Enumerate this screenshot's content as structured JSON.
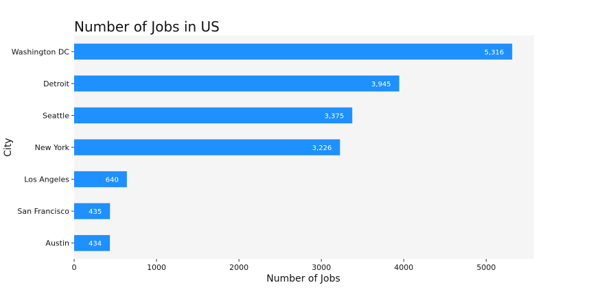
{
  "chart_data": {
    "type": "bar",
    "orientation": "horizontal",
    "title": "Number of Jobs in US",
    "xlabel": "Number of Jobs",
    "ylabel": "City",
    "categories": [
      "Washington DC",
      "Detroit",
      "Seattle",
      "New York",
      "Los Angeles",
      "San Francisco",
      "Austin"
    ],
    "values": [
      5316,
      3945,
      3375,
      3226,
      640,
      435,
      434
    ],
    "data_labels": [
      "5,316",
      "3,945",
      "3,375",
      "3,226",
      "640",
      "435",
      "434"
    ],
    "x_ticks": [
      0,
      1000,
      2000,
      3000,
      4000,
      5000
    ],
    "x_tick_labels": [
      "0",
      "1000",
      "2000",
      "3000",
      "4000",
      "5000"
    ],
    "xlim": [
      0,
      5580
    ],
    "grid": false,
    "legend": "none",
    "colors": {
      "bar": "#1e90ff",
      "plot_background": "#f5f5f5"
    }
  }
}
